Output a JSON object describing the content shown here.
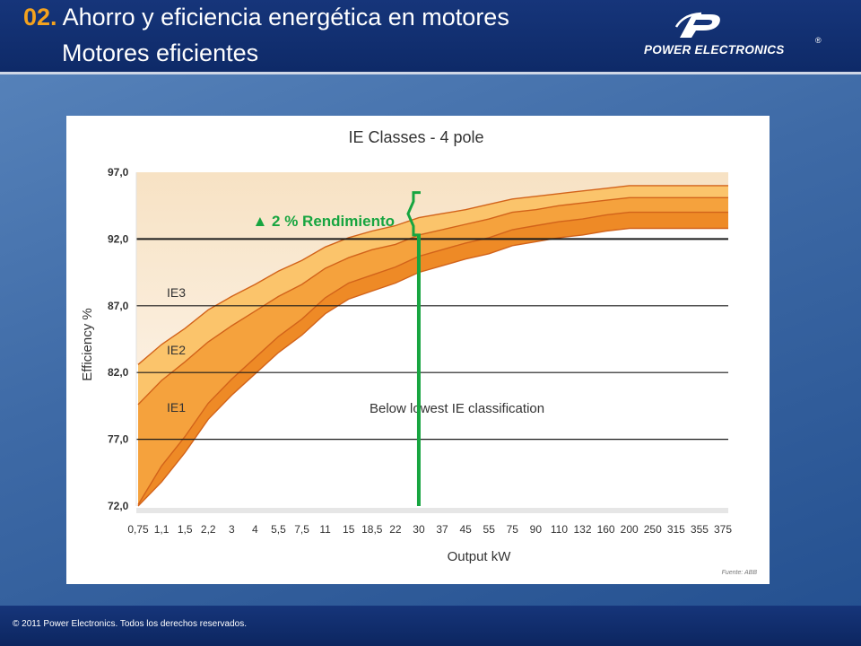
{
  "header": {
    "number": "02.",
    "title_line1": "Ahorro y eficiencia energética en motores",
    "title_line2": "Motores eficientes"
  },
  "logo": {
    "text": "POWER ELECTRONICS",
    "registered": "®"
  },
  "footer": {
    "copyright": "© 2011 Power Electronics. Todos los derechos reservados."
  },
  "colors": {
    "header_bg": "#0e2a68",
    "accent_number": "#f4a21e",
    "band_ie3": "#fbc46b",
    "band_ie2": "#f5a23d",
    "band_ie1": "#ee8a26",
    "band_edge": "#d2631a",
    "highlight_green": "#17a540"
  },
  "chart_data": {
    "type": "area",
    "title": "IE Classes - 4 pole",
    "xlabel": "Output kW",
    "ylabel": "Efficiency %",
    "categories": [
      "0,75",
      "1,1",
      "1,5",
      "2,2",
      "3",
      "4",
      "5,5",
      "7,5",
      "11",
      "15",
      "18,5",
      "22",
      "30",
      "37",
      "45",
      "55",
      "75",
      "90",
      "110",
      "132",
      "160",
      "200",
      "250",
      "315",
      "355",
      "375"
    ],
    "y_ticks": [
      "72,0",
      "77,0",
      "82,0",
      "87,0",
      "92,0",
      "97,0"
    ],
    "ylim": [
      72,
      97
    ],
    "grid_lines_at": [
      77,
      82,
      87,
      92
    ],
    "series": [
      {
        "name": "IE3",
        "values": [
          82.6,
          84.1,
          85.3,
          86.7,
          87.7,
          88.6,
          89.6,
          90.4,
          91.4,
          92.1,
          92.6,
          93.0,
          93.6,
          93.9,
          94.2,
          94.6,
          95.0,
          95.2,
          95.4,
          95.6,
          95.8,
          96.0,
          96.0,
          96.0,
          96.0,
          96.0
        ]
      },
      {
        "name": "IE2",
        "values": [
          79.6,
          81.4,
          82.8,
          84.3,
          85.5,
          86.6,
          87.7,
          88.6,
          89.8,
          90.6,
          91.2,
          91.6,
          92.3,
          92.7,
          93.1,
          93.5,
          94.0,
          94.2,
          94.5,
          94.7,
          94.9,
          95.1,
          95.1,
          95.1,
          95.1,
          95.1
        ]
      },
      {
        "name": "IE1",
        "values": [
          72.1,
          75.0,
          77.2,
          79.7,
          81.5,
          83.1,
          84.7,
          86.0,
          87.6,
          88.7,
          89.3,
          89.9,
          90.7,
          91.2,
          91.7,
          92.1,
          92.7,
          93.0,
          93.3,
          93.5,
          93.8,
          94.0,
          94.0,
          94.0,
          94.0,
          94.0
        ]
      }
    ],
    "series_labels": {
      "ie3": "IE3",
      "ie2": "IE2",
      "ie1": "IE1"
    },
    "region_label": "Below lowest IE classification",
    "annotation": {
      "text": "▲ 2 % Rendimiento",
      "category": "30",
      "from_value": 72,
      "to_value": 92.3
    },
    "source": "Fuente: ABB",
    "grid": true
  }
}
